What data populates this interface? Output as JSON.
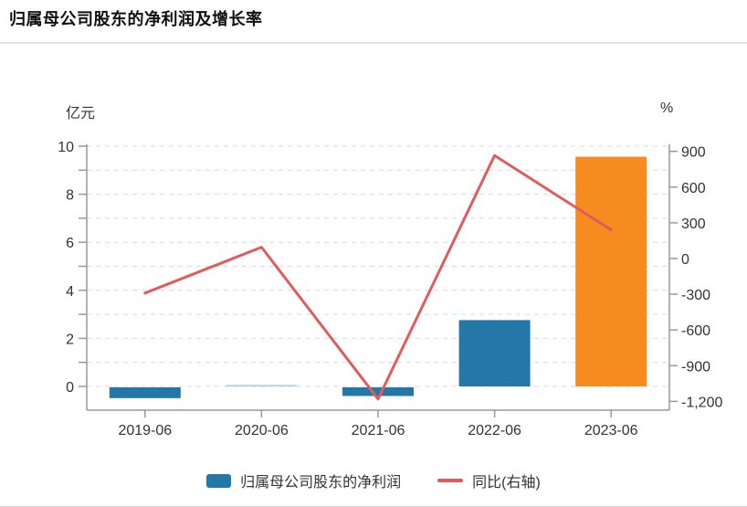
{
  "header": {
    "title": "归属母公司股东的净利润及增长率"
  },
  "chart_data": {
    "type": "bar+line",
    "title": "归属母公司股东的净利润及增长率",
    "categories": [
      "2019-06",
      "2020-06",
      "2021-06",
      "2022-06",
      "2023-06"
    ],
    "series": [
      {
        "name": "归属母公司股东的净利润",
        "type": "bar",
        "axis": "left",
        "unit": "亿元",
        "values": [
          -0.45,
          0.03,
          -0.36,
          2.76,
          9.56
        ],
        "point_colors": [
          "#2478a8",
          "#a9cde3",
          "#2478a8",
          "#2478a8",
          "#f68c1f"
        ]
      },
      {
        "name": "同比(右轴)",
        "type": "line",
        "axis": "right",
        "unit": "%",
        "values": [
          -290,
          95,
          -1180,
          865,
          240
        ],
        "color": "#e05c5c"
      }
    ],
    "left_axis": {
      "unit_label": "亿元",
      "range": [
        -1,
        10
      ],
      "labeled_ticks": [
        0,
        2,
        4,
        6,
        8,
        10
      ],
      "minor_ticks": [
        1,
        3,
        5,
        7,
        9
      ],
      "grid_ticks": [
        0,
        1,
        2,
        3,
        4,
        5,
        6,
        7,
        8,
        9,
        10
      ],
      "grid": "dashed"
    },
    "right_axis": {
      "unit_label": "%",
      "tick_values": [
        900,
        600,
        300,
        0,
        -300,
        -600,
        -900,
        -1200
      ],
      "tick_labels": [
        "900",
        "600",
        "300",
        "0",
        "-300",
        "-600",
        "-900",
        "-1,200"
      ]
    },
    "legend_position": "bottom"
  },
  "legend": {
    "bar_label": "归属母公司股东的净利润",
    "line_label": "同比(右轴)"
  },
  "colors": {
    "bar": "#2478a8",
    "bar_tiny": "#a9cde3",
    "bar_highlight": "#f68c1f",
    "line": "#e05c5c",
    "grid": "#d9d9d9",
    "axis": "#999999",
    "text": "#333333",
    "title": "#111111",
    "divider": "#e4e4e4"
  }
}
